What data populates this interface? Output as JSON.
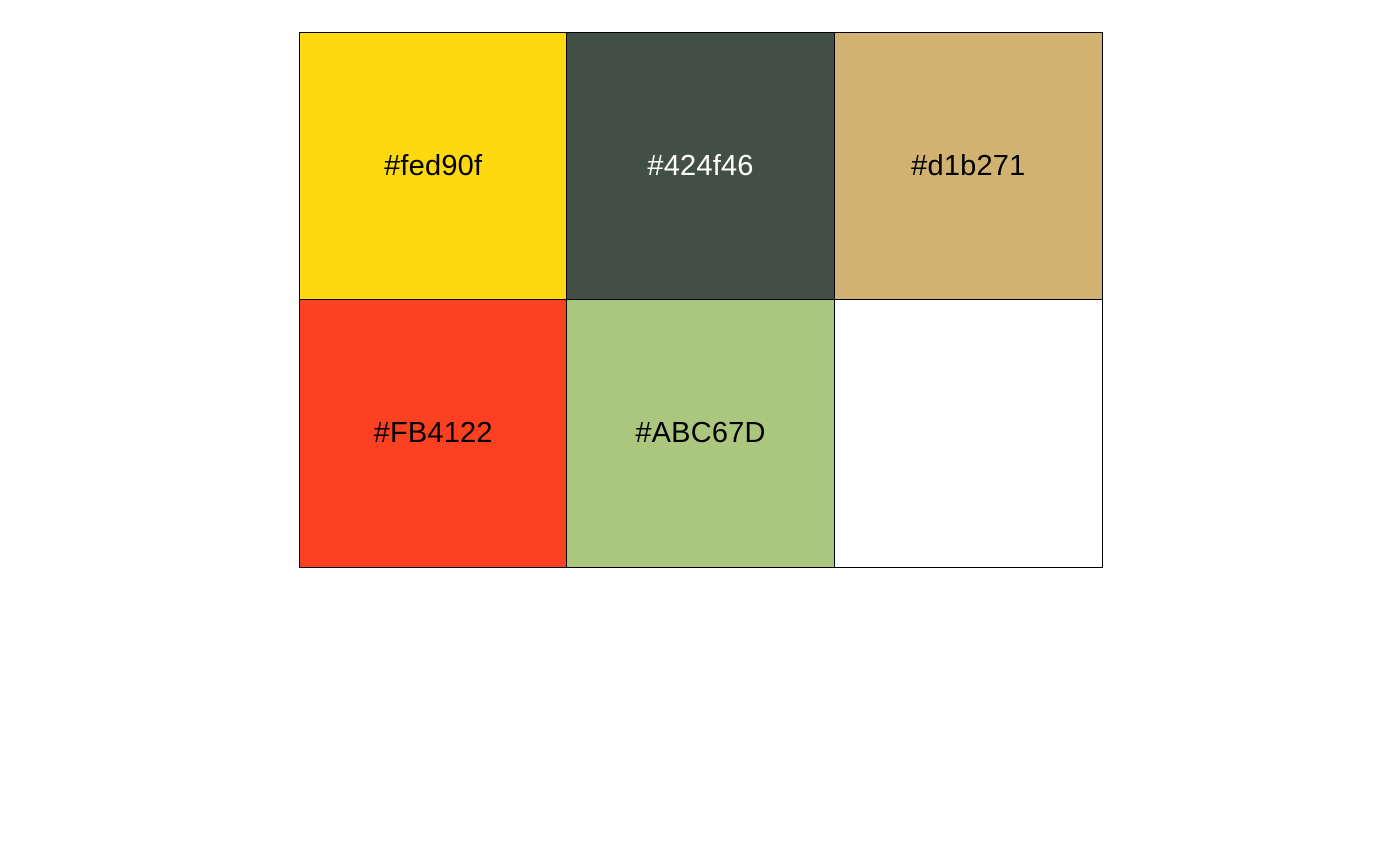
{
  "swatches": [
    {
      "label": "#fed90f",
      "color": "#fed90f",
      "text_color": "#000000"
    },
    {
      "label": "#424f46",
      "color": "#424f46",
      "text_color": "#ffffff"
    },
    {
      "label": "#d1b271",
      "color": "#d1b271",
      "text_color": "#000000"
    },
    {
      "label": "#FB4122",
      "color": "#FB4122",
      "text_color": "#000000"
    },
    {
      "label": "#ABC67D",
      "color": "#ABC67D",
      "text_color": "#000000"
    },
    {
      "label": "",
      "color": "#ffffff",
      "text_color": "#000000"
    }
  ]
}
